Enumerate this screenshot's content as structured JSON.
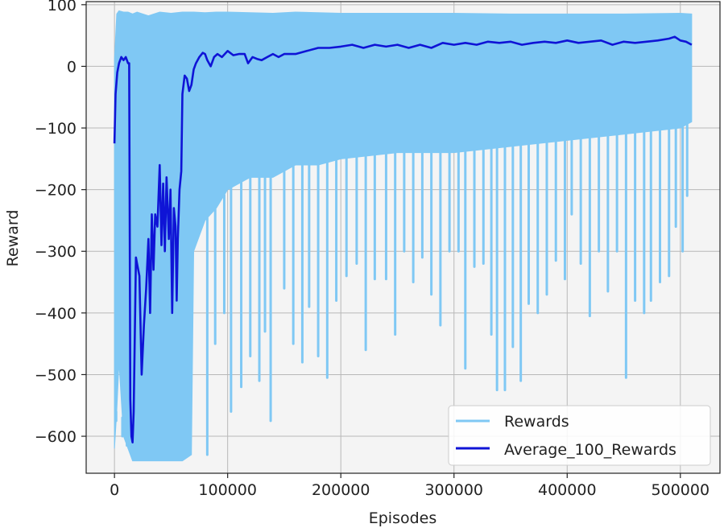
{
  "chart_data": {
    "type": "line",
    "xlabel": "Episodes",
    "ylabel": "Reward",
    "xlim": [
      -25000,
      535000
    ],
    "ylim": [
      -660,
      105
    ],
    "xticks": [
      0,
      100000,
      200000,
      300000,
      400000,
      500000
    ],
    "yticks": [
      100,
      0,
      -100,
      -200,
      -300,
      -400,
      -500,
      -600
    ],
    "grid": true,
    "legend_position": "bottom-right",
    "colors": {
      "rewards": "#7fc8f4",
      "average": "#0f14d6",
      "plot_bg": "#f4f4f4"
    },
    "series": [
      {
        "name": "Rewards",
        "x": [
          0,
          2000,
          4000,
          8000,
          12000,
          16000,
          20000,
          25000,
          30000,
          40000,
          50000,
          60000,
          68000,
          70000,
          80000,
          90000,
          100000,
          120000,
          140000,
          160000,
          180000,
          200000,
          250000,
          300000,
          350000,
          400000,
          450000,
          500000,
          510000
        ],
        "upper": [
          10,
          85,
          90,
          88,
          88,
          85,
          88,
          85,
          82,
          88,
          86,
          88,
          88,
          88,
          87,
          88,
          88,
          87,
          86,
          88,
          87,
          86,
          86,
          86,
          85,
          85,
          85,
          86,
          85
        ],
        "lower": [
          -620,
          -560,
          -480,
          -600,
          -620,
          -640,
          -640,
          -640,
          -640,
          -640,
          -640,
          -640,
          -630,
          -300,
          -250,
          -230,
          -200,
          -180,
          -180,
          -160,
          -160,
          -150,
          -140,
          -140,
          -130,
          -120,
          -110,
          -100,
          -90
        ],
        "spikes": [
          [
            1500,
            -560
          ],
          [
            7000,
            -600
          ],
          [
            11000,
            -590
          ],
          [
            82000,
            -630
          ],
          [
            89000,
            -450
          ],
          [
            97000,
            -400
          ],
          [
            103000,
            -560
          ],
          [
            112000,
            -520
          ],
          [
            120000,
            -470
          ],
          [
            128000,
            -510
          ],
          [
            133000,
            -430
          ],
          [
            138000,
            -575
          ],
          [
            150000,
            -360
          ],
          [
            158000,
            -450
          ],
          [
            166000,
            -480
          ],
          [
            172000,
            -390
          ],
          [
            180000,
            -470
          ],
          [
            188000,
            -505
          ],
          [
            196000,
            -380
          ],
          [
            205000,
            -340
          ],
          [
            214000,
            -320
          ],
          [
            222000,
            -460
          ],
          [
            230000,
            -345
          ],
          [
            240000,
            -345
          ],
          [
            248000,
            -435
          ],
          [
            256000,
            -300
          ],
          [
            264000,
            -350
          ],
          [
            272000,
            -310
          ],
          [
            280000,
            -370
          ],
          [
            288000,
            -420
          ],
          [
            296000,
            -300
          ],
          [
            304000,
            -300
          ],
          [
            310000,
            -490
          ],
          [
            318000,
            -325
          ],
          [
            326000,
            -320
          ],
          [
            333000,
            -435
          ],
          [
            338000,
            -525
          ],
          [
            345000,
            -525
          ],
          [
            352000,
            -455
          ],
          [
            359000,
            -510
          ],
          [
            366000,
            -385
          ],
          [
            374000,
            -400
          ],
          [
            382000,
            -370
          ],
          [
            390000,
            -315
          ],
          [
            398000,
            -345
          ],
          [
            404000,
            -240
          ],
          [
            412000,
            -320
          ],
          [
            420000,
            -405
          ],
          [
            428000,
            -300
          ],
          [
            436000,
            -365
          ],
          [
            444000,
            -300
          ],
          [
            452000,
            -505
          ],
          [
            460000,
            -380
          ],
          [
            468000,
            -400
          ],
          [
            474000,
            -380
          ],
          [
            482000,
            -350
          ],
          [
            490000,
            -340
          ],
          [
            496000,
            -260
          ],
          [
            502000,
            -300
          ],
          [
            506000,
            -210
          ]
        ]
      },
      {
        "name": "Average_100_Rewards",
        "points": [
          [
            0,
            -125
          ],
          [
            1000,
            -45
          ],
          [
            2500,
            -10
          ],
          [
            4000,
            5
          ],
          [
            6000,
            15
          ],
          [
            8000,
            10
          ],
          [
            10000,
            15
          ],
          [
            12000,
            5
          ],
          [
            13000,
            5
          ],
          [
            14000,
            -540
          ],
          [
            15000,
            -600
          ],
          [
            16000,
            -610
          ],
          [
            17000,
            -560
          ],
          [
            19000,
            -310
          ],
          [
            20000,
            -320
          ],
          [
            22000,
            -340
          ],
          [
            24000,
            -500
          ],
          [
            26000,
            -420
          ],
          [
            28000,
            -360
          ],
          [
            30000,
            -280
          ],
          [
            31500,
            -400
          ],
          [
            33000,
            -240
          ],
          [
            34500,
            -330
          ],
          [
            36000,
            -240
          ],
          [
            38000,
            -260
          ],
          [
            40000,
            -160
          ],
          [
            41500,
            -290
          ],
          [
            43000,
            -190
          ],
          [
            44500,
            -300
          ],
          [
            46000,
            -180
          ],
          [
            48000,
            -280
          ],
          [
            49500,
            -200
          ],
          [
            51000,
            -400
          ],
          [
            52500,
            -230
          ],
          [
            54000,
            -260
          ],
          [
            55000,
            -380
          ],
          [
            56000,
            -280
          ],
          [
            57500,
            -200
          ],
          [
            59000,
            -170
          ],
          [
            60000,
            -45
          ],
          [
            62000,
            -15
          ],
          [
            64000,
            -20
          ],
          [
            66000,
            -40
          ],
          [
            68000,
            -30
          ],
          [
            70000,
            -5
          ],
          [
            72000,
            5
          ],
          [
            75000,
            15
          ],
          [
            78000,
            22
          ],
          [
            80000,
            20
          ],
          [
            82000,
            10
          ],
          [
            85000,
            0
          ],
          [
            88000,
            15
          ],
          [
            91000,
            20
          ],
          [
            95000,
            15
          ],
          [
            100000,
            25
          ],
          [
            105000,
            18
          ],
          [
            110000,
            20
          ],
          [
            115000,
            20
          ],
          [
            118000,
            5
          ],
          [
            122000,
            15
          ],
          [
            126000,
            12
          ],
          [
            130000,
            10
          ],
          [
            135000,
            15
          ],
          [
            140000,
            20
          ],
          [
            145000,
            15
          ],
          [
            150000,
            20
          ],
          [
            160000,
            20
          ],
          [
            170000,
            25
          ],
          [
            180000,
            30
          ],
          [
            190000,
            30
          ],
          [
            200000,
            32
          ],
          [
            210000,
            35
          ],
          [
            220000,
            30
          ],
          [
            230000,
            35
          ],
          [
            240000,
            32
          ],
          [
            250000,
            35
          ],
          [
            260000,
            30
          ],
          [
            270000,
            35
          ],
          [
            280000,
            30
          ],
          [
            290000,
            38
          ],
          [
            300000,
            35
          ],
          [
            310000,
            38
          ],
          [
            320000,
            35
          ],
          [
            330000,
            40
          ],
          [
            340000,
            38
          ],
          [
            350000,
            40
          ],
          [
            360000,
            35
          ],
          [
            370000,
            38
          ],
          [
            380000,
            40
          ],
          [
            390000,
            38
          ],
          [
            400000,
            42
          ],
          [
            410000,
            38
          ],
          [
            420000,
            40
          ],
          [
            430000,
            42
          ],
          [
            440000,
            35
          ],
          [
            450000,
            40
          ],
          [
            460000,
            38
          ],
          [
            470000,
            40
          ],
          [
            480000,
            42
          ],
          [
            490000,
            45
          ],
          [
            495000,
            48
          ],
          [
            500000,
            42
          ],
          [
            505000,
            40
          ],
          [
            510000,
            35
          ]
        ]
      }
    ]
  }
}
